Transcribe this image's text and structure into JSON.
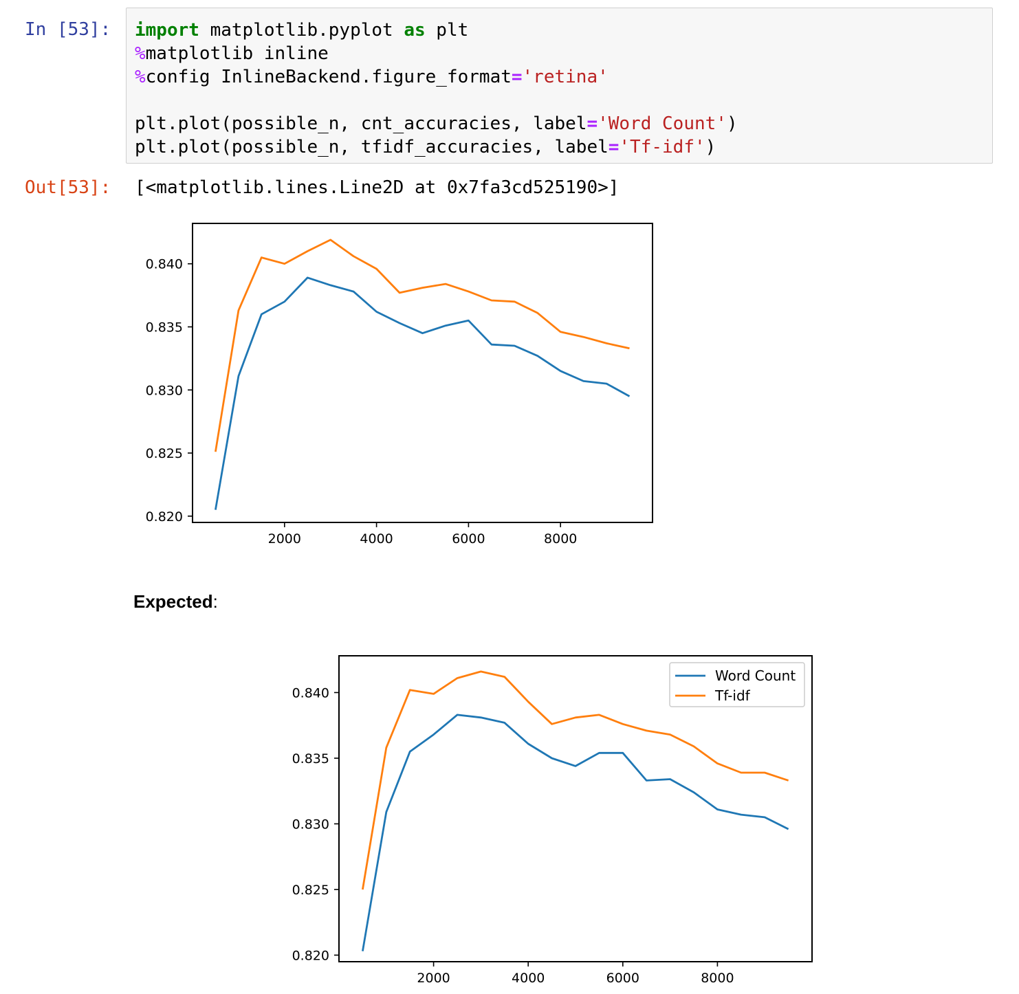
{
  "cell": {
    "in_prompt": "In [53]:",
    "out_prompt": "Out[53]:",
    "output_text": "[<matplotlib.lines.Line2D at 0x7fa3cd525190>]",
    "code_lines": [
      [
        {
          "t": "import",
          "c": "kw"
        },
        {
          "t": " matplotlib.pyplot ",
          "c": ""
        },
        {
          "t": "as",
          "c": "kw"
        },
        {
          "t": " plt",
          "c": ""
        }
      ],
      [
        {
          "t": "%",
          "c": "mag"
        },
        {
          "t": "matplotlib inline",
          "c": ""
        }
      ],
      [
        {
          "t": "%",
          "c": "mag"
        },
        {
          "t": "config InlineBackend.figure_format",
          "c": ""
        },
        {
          "t": "=",
          "c": "op"
        },
        {
          "t": "'retina'",
          "c": "str"
        }
      ],
      [],
      [
        {
          "t": "plt.plot(possible_n, cnt_accuracies, label",
          "c": ""
        },
        {
          "t": "=",
          "c": "op"
        },
        {
          "t": "'Word Count'",
          "c": "str"
        },
        {
          "t": ")",
          "c": ""
        }
      ],
      [
        {
          "t": "plt.plot(possible_n, tfidf_accuracies, label",
          "c": ""
        },
        {
          "t": "=",
          "c": "op"
        },
        {
          "t": "'Tf-idf'",
          "c": "str"
        },
        {
          "t": ")",
          "c": ""
        }
      ]
    ]
  },
  "expected_label": "Expected",
  "expected_colon": ":",
  "colors": {
    "word_count": "#1f77b4",
    "tfidf": "#ff7f0e"
  },
  "chart_data": [
    {
      "type": "line",
      "title": "",
      "xlabel": "",
      "ylabel": "",
      "xlim": [
        0,
        10000
      ],
      "ylim": [
        0.8195,
        0.8432
      ],
      "xticks": [
        2000,
        4000,
        6000,
        8000
      ],
      "xtick_labels": [
        "2000",
        "4000",
        "6000",
        "8000"
      ],
      "yticks": [
        0.82,
        0.825,
        0.83,
        0.835,
        0.84
      ],
      "ytick_labels": [
        "0.820",
        "0.825",
        "0.830",
        "0.835",
        "0.840"
      ],
      "grid": false,
      "legend": null,
      "x": [
        500,
        1000,
        1500,
        2000,
        2500,
        3000,
        3500,
        4000,
        4500,
        5000,
        5500,
        6000,
        6500,
        7000,
        7500,
        8000,
        8500,
        9000,
        9500
      ],
      "series": [
        {
          "values": [
            0.8205,
            0.8311,
            0.836,
            0.837,
            0.8389,
            0.8383,
            0.8378,
            0.8362,
            0.8353,
            0.8345,
            0.8351,
            0.8355,
            0.8336,
            0.8335,
            0.8327,
            0.8315,
            0.8307,
            0.8305,
            0.8295
          ]
        },
        {
          "values": [
            0.8251,
            0.8363,
            0.8405,
            0.84,
            0.841,
            0.8419,
            0.8406,
            0.8396,
            0.8377,
            0.8381,
            0.8384,
            0.8378,
            0.8371,
            0.837,
            0.8361,
            0.8346,
            0.8342,
            0.8337,
            0.8333
          ]
        }
      ]
    },
    {
      "type": "line",
      "title": "",
      "xlabel": "",
      "ylabel": "",
      "xlim": [
        0,
        10000
      ],
      "ylim": [
        0.8195,
        0.8428
      ],
      "xticks": [
        2000,
        4000,
        6000,
        8000
      ],
      "xtick_labels": [
        "2000",
        "4000",
        "6000",
        "8000"
      ],
      "yticks": [
        0.82,
        0.825,
        0.83,
        0.835,
        0.84
      ],
      "ytick_labels": [
        "0.820",
        "0.825",
        "0.830",
        "0.835",
        "0.840"
      ],
      "grid": false,
      "legend": "top-right",
      "x": [
        500,
        1000,
        1500,
        2000,
        2500,
        3000,
        3500,
        4000,
        4500,
        5000,
        5500,
        6000,
        6500,
        7000,
        7500,
        8000,
        8500,
        9000,
        9500
      ],
      "series": [
        {
          "name": "Word Count",
          "values": [
            0.8203,
            0.8309,
            0.8355,
            0.8368,
            0.8383,
            0.8381,
            0.8377,
            0.8361,
            0.835,
            0.8344,
            0.8354,
            0.8354,
            0.8333,
            0.8334,
            0.8324,
            0.8311,
            0.8307,
            0.8305,
            0.8296
          ]
        },
        {
          "name": "Tf-idf",
          "values": [
            0.825,
            0.8358,
            0.8402,
            0.8399,
            0.8411,
            0.8416,
            0.8412,
            0.8393,
            0.8376,
            0.8381,
            0.8383,
            0.8376,
            0.8371,
            0.8368,
            0.8359,
            0.8346,
            0.8339,
            0.8339,
            0.8333
          ]
        }
      ]
    }
  ]
}
